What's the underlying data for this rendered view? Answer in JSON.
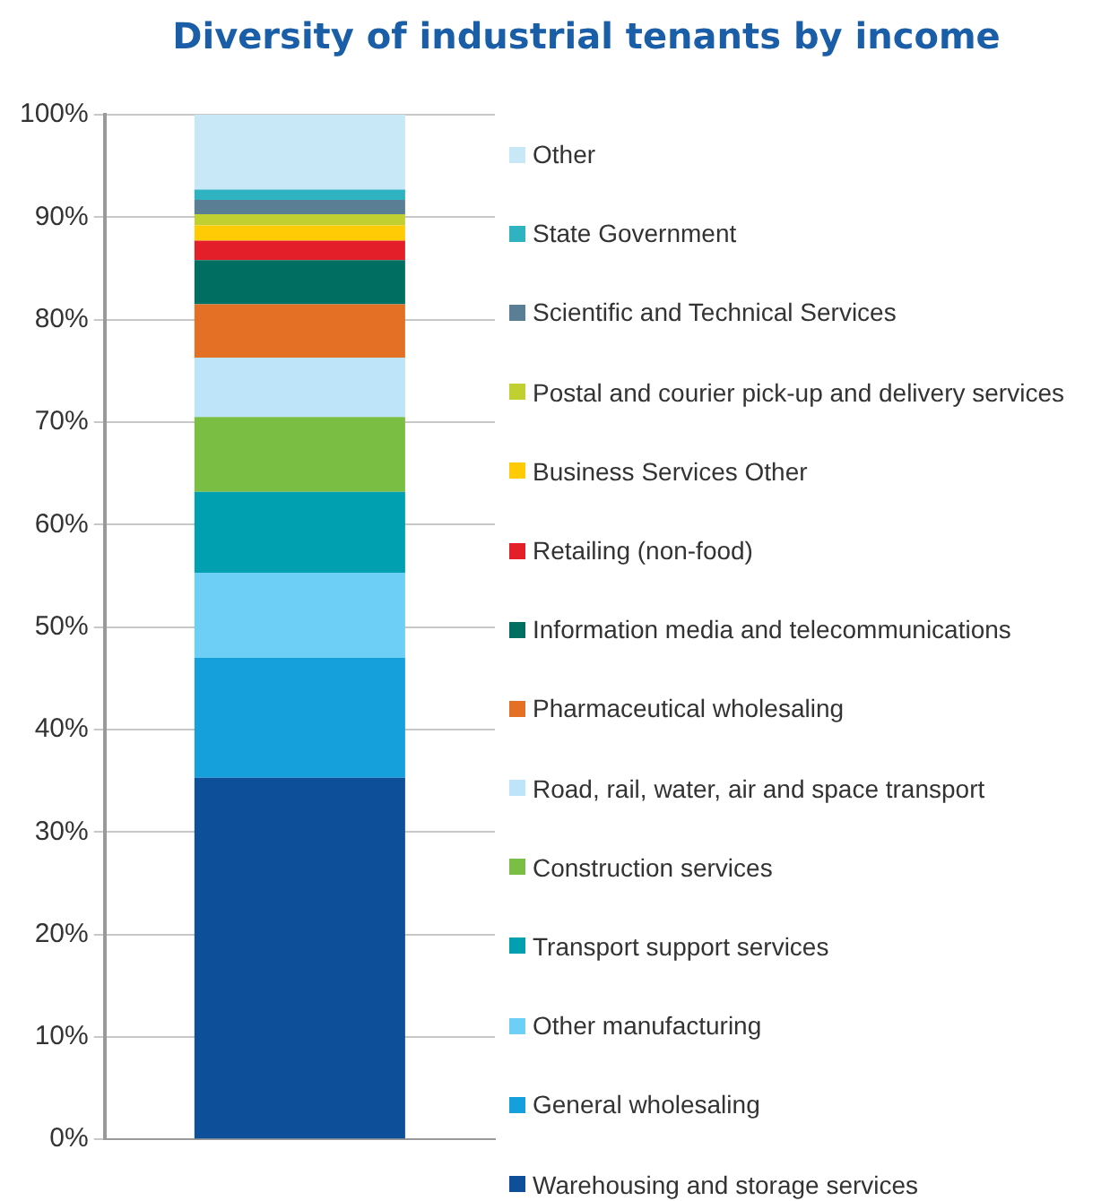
{
  "chart_data": {
    "type": "bar",
    "title": "Diversity of industrial tenants by income",
    "categories": [
      null
    ],
    "stacked": true,
    "series": [
      {
        "name": "Warehousing and storage services",
        "color": "#0d4f98",
        "values": [
          35.3
        ]
      },
      {
        "name": "General wholesaling",
        "color": "#159fdb",
        "values": [
          11.7
        ]
      },
      {
        "name": "Other manufacturing",
        "color": "#6dcff6",
        "values": [
          8.3
        ]
      },
      {
        "name": "Transport support services",
        "color": "#00a0b0",
        "values": [
          7.9
        ]
      },
      {
        "name": "Construction services",
        "color": "#7abf43",
        "values": [
          7.3
        ]
      },
      {
        "name": "Road, rail, water, air and space transport",
        "color": "#bde4f8",
        "values": [
          5.8
        ]
      },
      {
        "name": "Pharmaceutical wholesaling",
        "color": "#e37025",
        "values": [
          5.2
        ]
      },
      {
        "name": "Information media and telecommunications",
        "color": "#006f62",
        "values": [
          4.3
        ]
      },
      {
        "name": "Retailing (non-food)",
        "color": "#e3202a",
        "values": [
          1.9
        ]
      },
      {
        "name": "Business Services Other",
        "color": "#ffcb05",
        "values": [
          1.5
        ]
      },
      {
        "name": "Postal and courier pick-up and delivery services",
        "color": "#bfd030",
        "values": [
          1.1
        ]
      },
      {
        "name": "Scientific and Technical Services",
        "color": "#5a7f95",
        "values": [
          1.4
        ]
      },
      {
        "name": "State Government",
        "color": "#2fb3c1",
        "values": [
          1.0
        ]
      },
      {
        "name": "Other",
        "color": "#c8e8f8",
        "values": [
          7.3
        ]
      }
    ],
    "ylim": [
      0,
      100
    ],
    "yticks": [
      {
        "value": 0,
        "label": "0%"
      },
      {
        "value": 10,
        "label": "10%"
      },
      {
        "value": 20,
        "label": "20%"
      },
      {
        "value": 30,
        "label": "30%"
      },
      {
        "value": 40,
        "label": "40%"
      },
      {
        "value": 50,
        "label": "50%"
      },
      {
        "value": 60,
        "label": "60%"
      },
      {
        "value": 70,
        "label": "70%"
      },
      {
        "value": 80,
        "label": "80%"
      },
      {
        "value": 90,
        "label": "90%"
      },
      {
        "value": 100,
        "label": "100%"
      }
    ],
    "grid": "y",
    "legend": "right"
  }
}
